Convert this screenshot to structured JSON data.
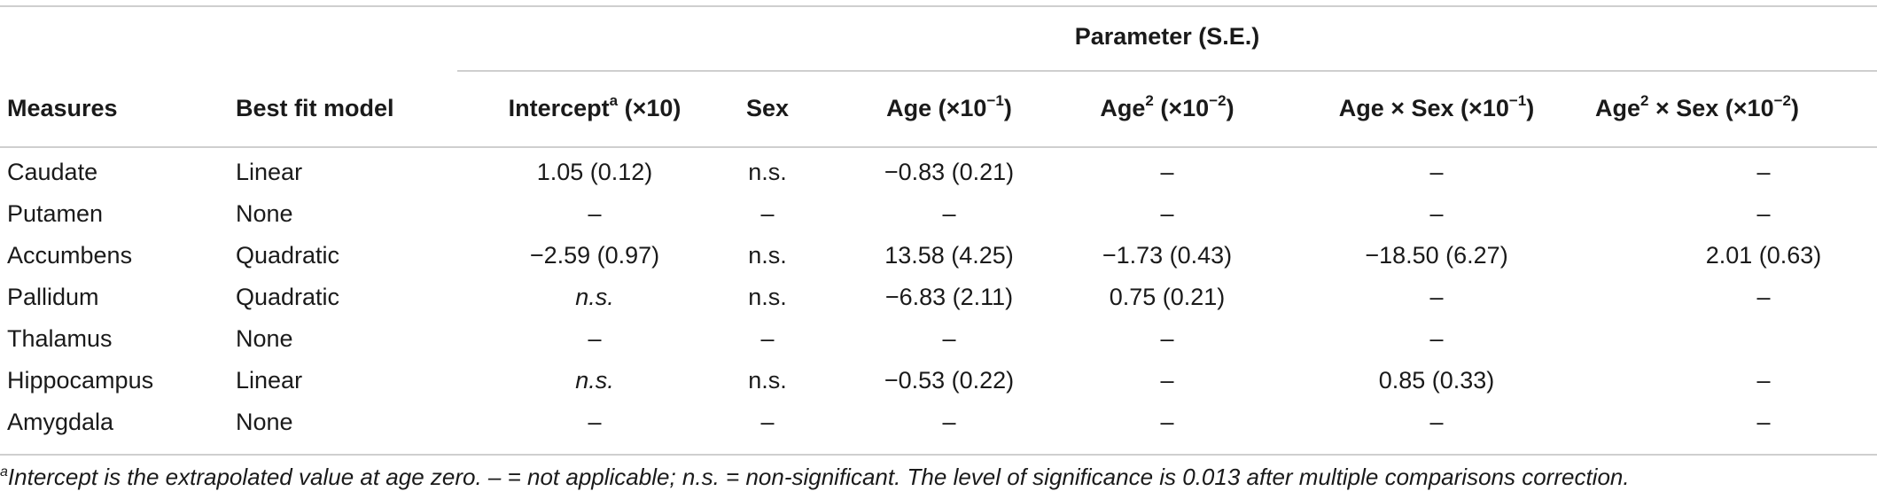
{
  "table": {
    "group_header": "Parameter (S.E.)",
    "columns": [
      {
        "label": "Measures",
        "sup": "",
        "suffix": ""
      },
      {
        "label": "Best fit model",
        "sup": "",
        "suffix": ""
      },
      {
        "label": "Intercept",
        "sup": "a",
        "suffix": " (×10)"
      },
      {
        "label": "Sex",
        "sup": "",
        "suffix": ""
      },
      {
        "label": "Age (×10",
        "sup": "−1",
        "suffix": ")"
      },
      {
        "label": "Age",
        "sup": "2",
        "suffix": " (×10"
      },
      {
        "label": "Age × Sex (×10",
        "sup": "−1",
        "suffix": ")"
      },
      {
        "label": "Age",
        "sup": "2",
        "suffix": " × Sex (×10"
      }
    ],
    "col5_tail": {
      "sup": "−2",
      "suffix": ")"
    },
    "col7_tail": {
      "sup": "−2",
      "suffix": ")"
    },
    "rows": [
      {
        "measure": "Caudate",
        "model": "Linear",
        "intercept": "1.05 (0.12)",
        "intercept_italic": false,
        "sex": "n.s.",
        "age": "−0.83 (0.21)",
        "age2": "–",
        "age_sex": "–",
        "age2_sex": "–"
      },
      {
        "measure": "Putamen",
        "model": "None",
        "intercept": "–",
        "intercept_italic": false,
        "sex": "–",
        "age": "–",
        "age2": "–",
        "age_sex": "–",
        "age2_sex": "–"
      },
      {
        "measure": "Accumbens",
        "model": "Quadratic",
        "intercept": "−2.59 (0.97)",
        "intercept_italic": false,
        "sex": "n.s.",
        "age": "13.58 (4.25)",
        "age2": "−1.73 (0.43)",
        "age_sex": "−18.50 (6.27)",
        "age2_sex": "2.01 (0.63)"
      },
      {
        "measure": "Pallidum",
        "model": "Quadratic",
        "intercept": "n.s.",
        "intercept_italic": true,
        "sex": "n.s.",
        "age": "−6.83 (2.11)",
        "age2": "0.75 (0.21)",
        "age_sex": "–",
        "age2_sex": "–"
      },
      {
        "measure": "Thalamus",
        "model": "None",
        "intercept": "–",
        "intercept_italic": false,
        "sex": "–",
        "age": "–",
        "age2": "–",
        "age_sex": "–",
        "age2_sex": ""
      },
      {
        "measure": "Hippocampus",
        "model": "Linear",
        "intercept": "n.s.",
        "intercept_italic": true,
        "sex": "n.s.",
        "age": "−0.53 (0.22)",
        "age2": "–",
        "age_sex": "0.85 (0.33)",
        "age2_sex": "–"
      },
      {
        "measure": "Amygdala",
        "model": "None",
        "intercept": "–",
        "intercept_italic": false,
        "sex": "–",
        "age": "–",
        "age2": "–",
        "age_sex": "–",
        "age2_sex": "–"
      }
    ],
    "footnote_sup": "a",
    "footnote": "Intercept is the extrapolated value at age zero. – = not applicable; n.s. = non-significant. The level of significance is 0.013 after multiple comparisons correction."
  }
}
